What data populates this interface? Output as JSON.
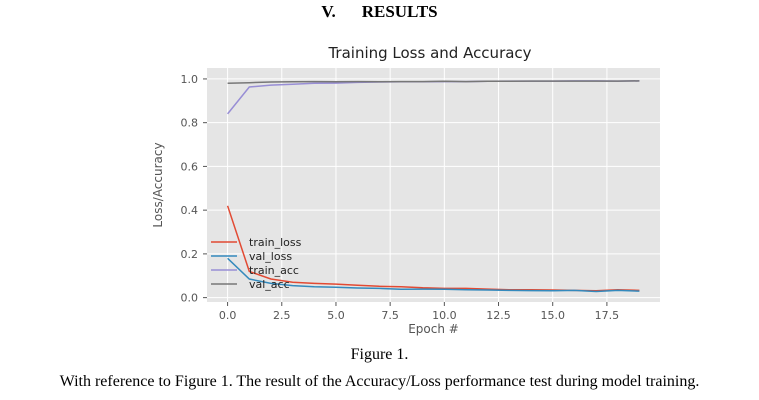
{
  "section": {
    "number": "V.",
    "title": "RESULTS"
  },
  "figure_caption": "Figure 1.",
  "paragraph": "With reference to Figure 1. The result of the Accuracy/Loss performance test during model training.",
  "chart_data": {
    "type": "line",
    "title": "Training Loss and Accuracy",
    "xlabel": "Epoch #",
    "ylabel": "Loss/Accuracy",
    "xlim": [
      -0.95,
      19.95
    ],
    "ylim": [
      -0.02,
      1.05
    ],
    "xticks": [
      0.0,
      2.5,
      5.0,
      7.5,
      10.0,
      12.5,
      15.0,
      17.5
    ],
    "xtick_labels": [
      "0.0",
      "2.5",
      "5.0",
      "7.5",
      "10.0",
      "12.5",
      "15.0",
      "17.5"
    ],
    "yticks": [
      0.0,
      0.2,
      0.4,
      0.6,
      0.8,
      1.0
    ],
    "ytick_labels": [
      "0.0",
      "0.2",
      "0.4",
      "0.6",
      "0.8",
      "1.0"
    ],
    "grid": true,
    "legend_position": "lower-left",
    "background": "#e5e5e5",
    "x": [
      0,
      1,
      2,
      3,
      4,
      5,
      6,
      7,
      8,
      9,
      10,
      11,
      12,
      13,
      14,
      15,
      16,
      17,
      18,
      19
    ],
    "series": [
      {
        "name": "train_loss",
        "color": "#e24a33",
        "values": [
          0.42,
          0.12,
          0.085,
          0.07,
          0.065,
          0.062,
          0.057,
          0.052,
          0.05,
          0.045,
          0.042,
          0.042,
          0.039,
          0.036,
          0.036,
          0.035,
          0.033,
          0.031,
          0.036,
          0.033
        ]
      },
      {
        "name": "val_loss",
        "color": "#348abd",
        "values": [
          0.18,
          0.085,
          0.065,
          0.055,
          0.05,
          0.047,
          0.044,
          0.042,
          0.038,
          0.039,
          0.038,
          0.036,
          0.035,
          0.033,
          0.032,
          0.031,
          0.033,
          0.028,
          0.033,
          0.03
        ]
      },
      {
        "name": "train_acc",
        "color": "#988ed5",
        "values": [
          0.84,
          0.963,
          0.972,
          0.976,
          0.98,
          0.981,
          0.984,
          0.986,
          0.987,
          0.987,
          0.988,
          0.988,
          0.989,
          0.99,
          0.99,
          0.99,
          0.991,
          0.991,
          0.99,
          0.991
        ]
      },
      {
        "name": "val_acc",
        "color": "#777777",
        "values": [
          0.98,
          0.983,
          0.986,
          0.987,
          0.988,
          0.987,
          0.988,
          0.987,
          0.988,
          0.988,
          0.989,
          0.988,
          0.989,
          0.989,
          0.99,
          0.99,
          0.99,
          0.99,
          0.99,
          0.991
        ]
      }
    ]
  }
}
